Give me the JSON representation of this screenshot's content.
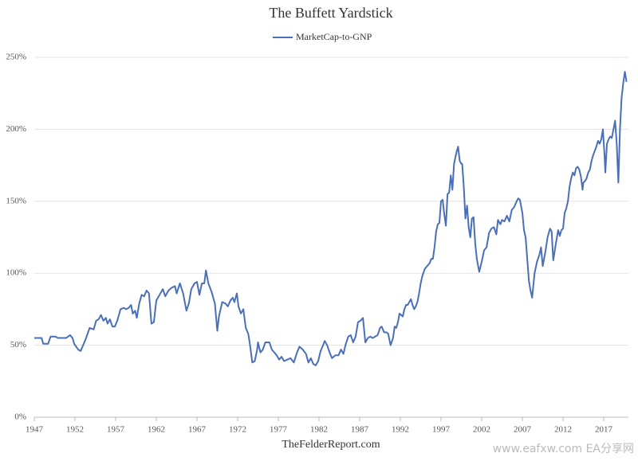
{
  "chart_data": {
    "type": "line",
    "title": "The Buffett Yardstick",
    "source": "TheFelderReport.com",
    "watermark": "www.eafxw.com  EA分享网",
    "legend": "top",
    "grid": true,
    "xlim": [
      1947,
      2020
    ],
    "xticks": [
      1947,
      1952,
      1957,
      1962,
      1967,
      1972,
      1977,
      1982,
      1987,
      1992,
      1997,
      2002,
      2007,
      2012,
      2017
    ],
    "ylim": [
      0,
      250
    ],
    "yticks": [
      {
        "value": 0,
        "label": "0%"
      },
      {
        "value": 50,
        "label": "50%"
      },
      {
        "value": 100,
        "label": "100%"
      },
      {
        "value": 150,
        "label": "150%"
      },
      {
        "value": 200,
        "label": "200%"
      },
      {
        "value": 250,
        "label": "250%"
      }
    ],
    "x": [
      1947.0,
      1947.9,
      1948.1,
      1948.7,
      1949.0,
      1949.6,
      1949.9,
      1950.9,
      1951.4,
      1951.7,
      1951.9,
      1952.4,
      1952.7,
      1953.3,
      1953.8,
      1954.3,
      1954.6,
      1954.9,
      1955.2,
      1955.5,
      1955.8,
      1956.0,
      1956.3,
      1956.6,
      1956.9,
      1957.2,
      1957.6,
      1958.0,
      1958.3,
      1958.6,
      1958.9,
      1959.1,
      1959.4,
      1959.6,
      1959.9,
      1960.2,
      1960.5,
      1960.8,
      1961.1,
      1961.4,
      1961.7,
      1962.0,
      1962.4,
      1962.8,
      1963.1,
      1963.5,
      1963.9,
      1964.3,
      1964.5,
      1964.9,
      1965.3,
      1965.7,
      1966.0,
      1966.3,
      1966.7,
      1967.0,
      1967.3,
      1967.6,
      1967.9,
      1968.1,
      1968.4,
      1968.8,
      1969.2,
      1969.5,
      1969.7,
      1970.1,
      1970.5,
      1970.8,
      1971.1,
      1971.4,
      1971.6,
      1971.9,
      1972.1,
      1972.4,
      1972.7,
      1973.0,
      1973.3,
      1973.5,
      1973.8,
      1974.1,
      1974.4,
      1974.5,
      1974.8,
      1975.1,
      1975.4,
      1975.9,
      1976.2,
      1976.5,
      1976.8,
      1977.1,
      1977.4,
      1977.7,
      1978.1,
      1978.5,
      1978.9,
      1979.3,
      1979.6,
      1980.0,
      1980.4,
      1980.7,
      1981.0,
      1981.3,
      1981.6,
      1981.9,
      1982.2,
      1982.5,
      1982.7,
      1983.0,
      1983.3,
      1983.6,
      1984.0,
      1984.4,
      1984.7,
      1985.0,
      1985.3,
      1985.6,
      1985.9,
      1986.2,
      1986.5,
      1986.8,
      1987.1,
      1987.4,
      1987.7,
      1988.0,
      1988.3,
      1988.6,
      1988.9,
      1989.2,
      1989.5,
      1989.7,
      1990.0,
      1990.3,
      1990.5,
      1990.8,
      1991.1,
      1991.3,
      1991.5,
      1991.7,
      1991.9,
      1992.1,
      1992.3,
      1992.5,
      1992.7,
      1992.9,
      1993.1,
      1993.3,
      1993.5,
      1993.7,
      1993.9,
      1994.1,
      1994.3,
      1994.5,
      1994.7,
      1995.0,
      1995.3,
      1995.6,
      1995.8,
      1996.0,
      1996.2,
      1996.4,
      1996.6,
      1996.8,
      1997.0,
      1997.2,
      1997.4,
      1997.6,
      1997.8,
      1998.0,
      1998.2,
      1998.4,
      1998.6,
      1998.9,
      1999.1,
      1999.3,
      1999.5,
      1999.6,
      1999.8,
      2000.0,
      2000.2,
      2000.4,
      2000.6,
      2000.8,
      2001.0,
      2001.2,
      2001.4,
      2001.7,
      2002.0,
      2002.3,
      2002.6,
      2002.9,
      2003.2,
      2003.5,
      2003.8,
      2004.0,
      2004.3,
      2004.5,
      2004.8,
      2005.1,
      2005.4,
      2005.7,
      2006.0,
      2006.3,
      2006.5,
      2006.7,
      2007.0,
      2007.2,
      2007.4,
      2007.6,
      2007.8,
      2008.0,
      2008.2,
      2008.5,
      2008.8,
      2009.1,
      2009.3,
      2009.5,
      2009.8,
      2010.1,
      2010.4,
      2010.6,
      2010.8,
      2011.1,
      2011.4,
      2011.6,
      2011.8,
      2012.0,
      2012.2,
      2012.4,
      2012.6,
      2012.8,
      2013.0,
      2013.2,
      2013.4,
      2013.6,
      2013.8,
      2014.0,
      2014.2,
      2014.4,
      2014.5,
      2014.7,
      2014.9,
      2015.1,
      2015.3,
      2015.5,
      2015.7,
      2015.9,
      2016.1,
      2016.3,
      2016.5,
      2016.7,
      2016.9,
      2017.1,
      2017.2,
      2017.4,
      2017.6,
      2017.8,
      2018.0,
      2018.2,
      2018.4,
      2018.6,
      2018.8,
      2019.0,
      2019.2,
      2019.4,
      2019.6,
      2019.8
    ],
    "series": [
      {
        "name": "MarketCap-to-GNP",
        "color": "#4a6fb8",
        "values": [
          55,
          55,
          51,
          51,
          56,
          56,
          55,
          55,
          57,
          55,
          51,
          47,
          46,
          54,
          62,
          61,
          67,
          68,
          71,
          67,
          69,
          65,
          68,
          63,
          63,
          67,
          75,
          76,
          75,
          76,
          78,
          72,
          74,
          69,
          79,
          85,
          84,
          88,
          86,
          65,
          66,
          81,
          85,
          89,
          84,
          88,
          90,
          91,
          86,
          93,
          86,
          74,
          79,
          89,
          93,
          94,
          85,
          93,
          93,
          102,
          93,
          87,
          79,
          60,
          70,
          80,
          79,
          77,
          81,
          83,
          80,
          86,
          77,
          72,
          75,
          62,
          58,
          51,
          38,
          39,
          47,
          52,
          45,
          47,
          52,
          52,
          47,
          45,
          43,
          40,
          42,
          39,
          40,
          41,
          38,
          45,
          49,
          47,
          44,
          38,
          41,
          37,
          36,
          39,
          46,
          50,
          53,
          50,
          45,
          41,
          43,
          43,
          47,
          44,
          51,
          56,
          57,
          52,
          56,
          66,
          67,
          69,
          52,
          55,
          56,
          55,
          56,
          57,
          62,
          63,
          59,
          59,
          58,
          50,
          55,
          63,
          62,
          66,
          72,
          71,
          70,
          75,
          78,
          78,
          80,
          82,
          78,
          75,
          77,
          80,
          86,
          93,
          98,
          103,
          105,
          107,
          110,
          110,
          118,
          129,
          134,
          135,
          150,
          151,
          141,
          133,
          155,
          156,
          168,
          158,
          176,
          184,
          188,
          178,
          176,
          176,
          160,
          138,
          147,
          132,
          125,
          138,
          139,
          121,
          110,
          101,
          108,
          116,
          118,
          128,
          131,
          132,
          127,
          137,
          134,
          137,
          136,
          140,
          136,
          144,
          146,
          150,
          152,
          151,
          142,
          130,
          125,
          110,
          95,
          88,
          83,
          100,
          108,
          113,
          118,
          105,
          114,
          125,
          131,
          129,
          109,
          120,
          130,
          126,
          130,
          131,
          142,
          145,
          150,
          160,
          166,
          170,
          168,
          173,
          174,
          172,
          167,
          158,
          163,
          164,
          166,
          170,
          172,
          178,
          182,
          185,
          188,
          192,
          190,
          193,
          200,
          182,
          170,
          190,
          193,
          195,
          194,
          200,
          206,
          190,
          163,
          200,
          222,
          232,
          240,
          233
        ]
      }
    ]
  }
}
